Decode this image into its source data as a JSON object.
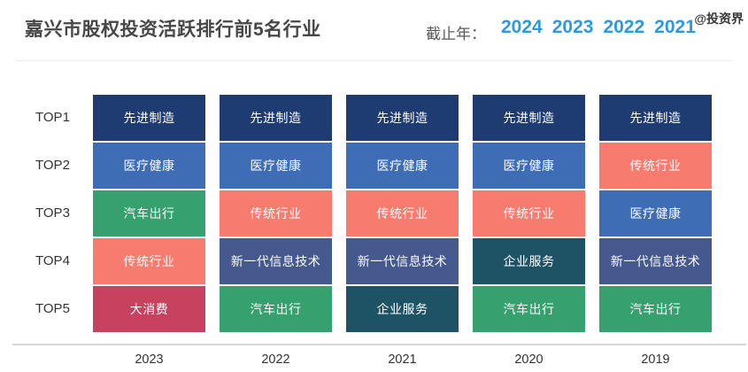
{
  "header": {
    "title": "嘉兴市股权投资活跃排行前5名行业",
    "cutoff_year_label": "截止年：",
    "year_links": [
      "2024",
      "2023",
      "2022",
      "2021"
    ],
    "watermark": "@投资界"
  },
  "colors": {
    "year_link_blue": "#2c9ae0",
    "title_text": "#474747",
    "axis_line": "#d6d6d6",
    "row_label_text": "#333333"
  },
  "chart_data": {
    "type": "table",
    "title": "嘉兴市股权投资活跃排行前5名行业",
    "xlabel": "",
    "ylabel": "",
    "grid": false,
    "legend_position": "none",
    "row_labels": [
      "TOP1",
      "TOP2",
      "TOP3",
      "TOP4",
      "TOP5"
    ],
    "categories": [
      "2023",
      "2022",
      "2021",
      "2020",
      "2019"
    ],
    "columns": [
      {
        "year": "2023",
        "ranks": [
          "先进制造",
          "医疗健康",
          "汽车出行",
          "传统行业",
          "大消费"
        ]
      },
      {
        "year": "2022",
        "ranks": [
          "先进制造",
          "医疗健康",
          "传统行业",
          "新一代信息技术",
          "汽车出行"
        ]
      },
      {
        "year": "2021",
        "ranks": [
          "先进制造",
          "医疗健康",
          "传统行业",
          "新一代信息技术",
          "企业服务"
        ]
      },
      {
        "year": "2020",
        "ranks": [
          "先进制造",
          "医疗健康",
          "传统行业",
          "企业服务",
          "汽车出行"
        ]
      },
      {
        "year": "2019",
        "ranks": [
          "先进制造",
          "传统行业",
          "医疗健康",
          "新一代信息技术",
          "汽车出行"
        ]
      }
    ],
    "industry_colors": {
      "先进制造": "#1e3b72",
      "医疗健康": "#3e6cb5",
      "汽车出行": "#36a06f",
      "传统行业": "#f87b6f",
      "大消费": "#c8415f",
      "新一代信息技术": "#46598e",
      "企业服务": "#1e5366"
    }
  }
}
